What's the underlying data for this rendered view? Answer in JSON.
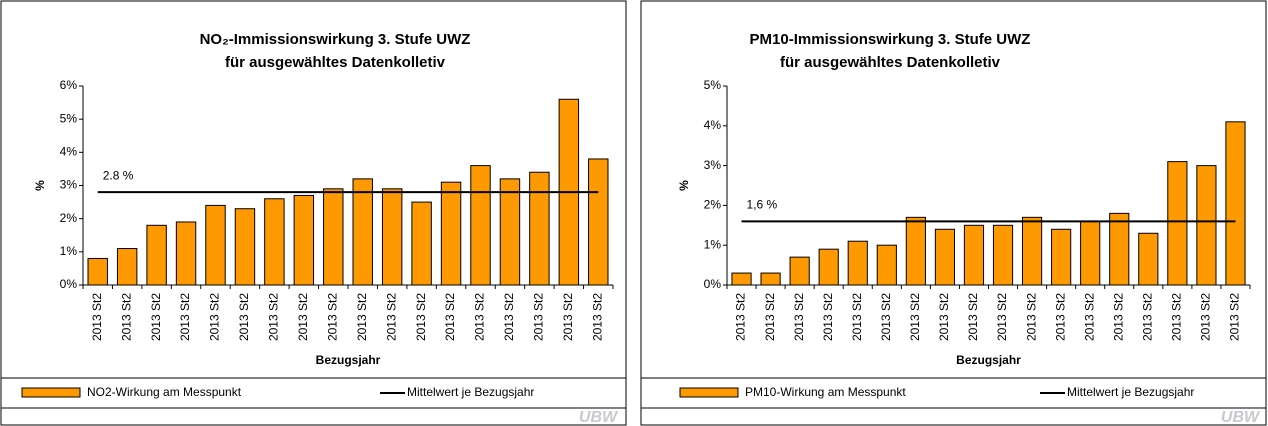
{
  "chart_data": [
    {
      "type": "bar",
      "title": "NO₂-Immissionswirkung 3. Stufe UWZ",
      "subtitle": "für ausgewähltes Datenkolletiv",
      "x_label": "Bezugsjahr",
      "y_label": "%",
      "categories": [
        "2013 St2",
        "2013 St2",
        "2013 St2",
        "2013 St2",
        "2013 St2",
        "2013 St2",
        "2013 St2",
        "2013 St2",
        "2013 St2",
        "2013 St2",
        "2013 St2",
        "2013 St2",
        "2013 St2",
        "2013 St2",
        "2013 St2",
        "2013 St2",
        "2013 St2",
        "2013 St2"
      ],
      "series": [
        {
          "name": "NO2-Wirkung am Messpunkt",
          "color": "#ff9900",
          "values": [
            0.8,
            1.1,
            1.8,
            1.9,
            2.4,
            2.3,
            2.6,
            2.7,
            2.9,
            3.2,
            2.9,
            2.5,
            3.1,
            3.6,
            3.2,
            3.4,
            5.6,
            3.8
          ]
        }
      ],
      "reference_line": {
        "name": "Mittelwert je Bezugsjahr",
        "value": 2.8,
        "label": "2.8 %",
        "color": "#000000"
      },
      "ylim": [
        0,
        6
      ],
      "yticks": [
        {
          "value": 0,
          "label": "0%"
        },
        {
          "value": 1,
          "label": "1%"
        },
        {
          "value": 2,
          "label": "2%"
        },
        {
          "value": 3,
          "label": "3%"
        },
        {
          "value": 4,
          "label": "4%"
        },
        {
          "value": 5,
          "label": "5%"
        },
        {
          "value": 6,
          "label": "6%"
        }
      ],
      "watermark": "UBW"
    },
    {
      "type": "bar",
      "title": "PM10-Immissionswirkung 3. Stufe UWZ",
      "subtitle": "für ausgewähltes Datenkolletiv",
      "x_label": "Bezugsjahr",
      "y_label": "%",
      "categories": [
        "2013 St2",
        "2013 St2",
        "2013 St2",
        "2013 St2",
        "2013 St2",
        "2013 St2",
        "2013 St2",
        "2013 St2",
        "2013 St2",
        "2013 St2",
        "2013 St2",
        "2013 St2",
        "2013 St2",
        "2013 St2",
        "2013 St2",
        "2013 St2",
        "2013 St2",
        "2013 St2"
      ],
      "series": [
        {
          "name": "PM10-Wirkung am Messpunkt",
          "color": "#ff9900",
          "values": [
            0.3,
            0.3,
            0.7,
            0.9,
            1.1,
            1.0,
            1.7,
            1.4,
            1.5,
            1.5,
            1.7,
            1.4,
            1.6,
            1.8,
            1.3,
            3.1,
            3.0,
            4.1
          ]
        }
      ],
      "reference_line": {
        "name": "Mittelwert je Bezugsjahr",
        "value": 1.6,
        "label": "1,6 %",
        "color": "#000000"
      },
      "ylim": [
        0,
        5
      ],
      "yticks": [
        {
          "value": 0,
          "label": "0%"
        },
        {
          "value": 1,
          "label": "1%"
        },
        {
          "value": 2,
          "label": "2%"
        },
        {
          "value": 3,
          "label": "3%"
        },
        {
          "value": 4,
          "label": "4%"
        },
        {
          "value": 5,
          "label": "5%"
        }
      ],
      "watermark": "UBW"
    }
  ]
}
